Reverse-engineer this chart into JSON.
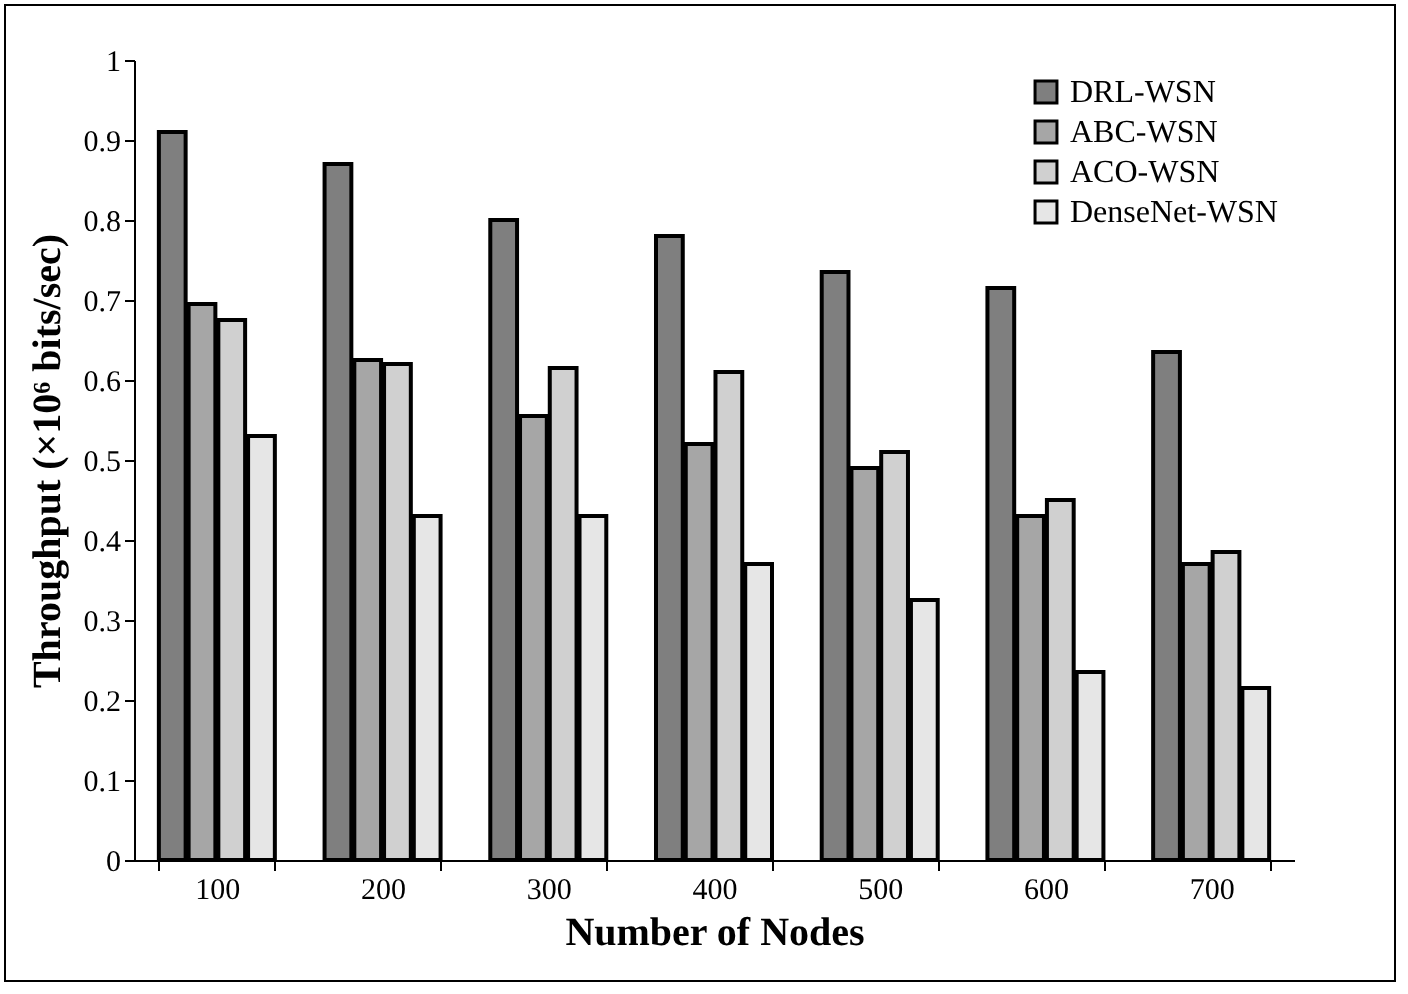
{
  "chart_data": {
    "type": "bar",
    "xlabel": "Number of Nodes",
    "ylabel": "Throughput (×10⁶ bits/sec)",
    "categories": [
      "100",
      "200",
      "300",
      "400",
      "500",
      "600",
      "700"
    ],
    "series": [
      {
        "name": "DRL-WSN",
        "color": "#7f7f7f",
        "values": [
          0.91,
          0.87,
          0.8,
          0.78,
          0.735,
          0.715,
          0.635
        ]
      },
      {
        "name": "ABC-WSN",
        "color": "#a6a6a6",
        "values": [
          0.695,
          0.625,
          0.555,
          0.52,
          0.49,
          0.43,
          0.37
        ]
      },
      {
        "name": "ACO-WSN",
        "color": "#d0d0d0",
        "values": [
          0.675,
          0.62,
          0.615,
          0.61,
          0.51,
          0.45,
          0.385
        ]
      },
      {
        "name": "DenseNet-WSN",
        "color": "#e6e6e6",
        "values": [
          0.53,
          0.43,
          0.43,
          0.37,
          0.325,
          0.235,
          0.215
        ]
      }
    ],
    "ylim": [
      0,
      1
    ],
    "yticks": [
      0,
      0.1,
      0.2,
      0.3,
      0.4,
      0.5,
      0.6,
      0.7,
      0.8,
      0.9,
      1
    ],
    "grid": false,
    "legend": "top right"
  }
}
